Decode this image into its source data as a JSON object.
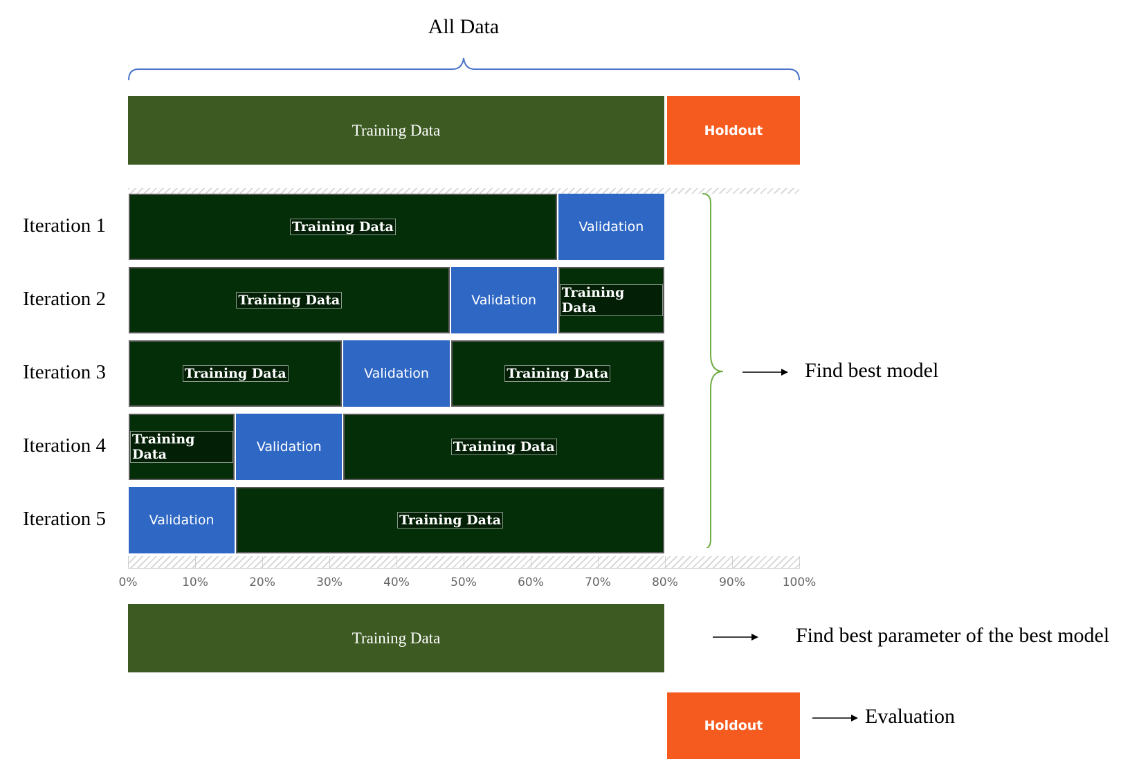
{
  "title": "All Data",
  "top_bar": {
    "training_label": "Training Data",
    "holdout_label": "Holdout"
  },
  "iterations": [
    {
      "label": "Iteration 1",
      "segments": [
        {
          "type": "train",
          "text": "Training Data",
          "start": 0,
          "end": 64
        },
        {
          "type": "val",
          "text": "Validation",
          "start": 64,
          "end": 80
        }
      ]
    },
    {
      "label": "Iteration 2",
      "segments": [
        {
          "type": "train",
          "text": "Training Data",
          "start": 0,
          "end": 48
        },
        {
          "type": "val",
          "text": "Validation",
          "start": 48,
          "end": 64
        },
        {
          "type": "train",
          "text": "Training Data",
          "start": 64,
          "end": 80
        }
      ]
    },
    {
      "label": "Iteration 3",
      "segments": [
        {
          "type": "train",
          "text": "Training Data",
          "start": 0,
          "end": 32
        },
        {
          "type": "val",
          "text": "Validation",
          "start": 32,
          "end": 48
        },
        {
          "type": "train",
          "text": "Training Data",
          "start": 48,
          "end": 80
        }
      ]
    },
    {
      "label": "Iteration 4",
      "segments": [
        {
          "type": "train",
          "text": "Training Data",
          "start": 0,
          "end": 16
        },
        {
          "type": "val",
          "text": "Validation",
          "start": 16,
          "end": 32
        },
        {
          "type": "train",
          "text": "Training Data",
          "start": 32,
          "end": 80
        }
      ]
    },
    {
      "label": "Iteration 5",
      "segments": [
        {
          "type": "val",
          "text": "Validation",
          "start": 0,
          "end": 16
        },
        {
          "type": "train",
          "text": "Training Data",
          "start": 16,
          "end": 80
        }
      ]
    }
  ],
  "axis_ticks": [
    "0%",
    "10%",
    "20%",
    "30%",
    "40%",
    "50%",
    "60%",
    "70%",
    "80%",
    "90%",
    "100%"
  ],
  "find_best_model": "Find best model",
  "bottom_bar": {
    "training_label": "Training Data",
    "holdout_label": "Holdout"
  },
  "find_best_param": "Find best parameter of the best model",
  "evaluation": "Evaluation",
  "colors": {
    "training_top": "#3d5a23",
    "training_dark": "#032e07",
    "validation": "#2e67c4",
    "holdout": "#f55b1f",
    "brace_blue": "#4a74c9",
    "brace_green": "#70ad47"
  }
}
